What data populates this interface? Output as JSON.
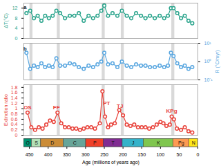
{
  "chart_data": [
    {
      "type": "line",
      "y_label": "ΔT(°C)",
      "color": "#2ca58d",
      "marker": "circle",
      "ylim": [
        0,
        14
      ],
      "yticks": [
        0,
        4,
        8,
        12
      ],
      "annotations": [
        {
          "text": "a",
          "x": 462,
          "y": 12.5
        }
      ],
      "x": [
        458,
        448,
        438,
        428,
        418,
        408,
        398,
        388,
        378,
        368,
        355,
        342,
        330,
        318,
        305,
        292,
        280,
        268,
        258,
        250,
        240,
        228,
        215,
        203,
        190,
        178,
        165,
        152,
        140,
        128,
        115,
        102,
        90,
        80,
        72,
        65,
        55,
        45,
        35,
        25,
        15
      ],
      "values": [
        10,
        11,
        8,
        9,
        7,
        9,
        8,
        9,
        11,
        10,
        8,
        9,
        9,
        10,
        7,
        9,
        8,
        9,
        11,
        13,
        9,
        10,
        9,
        11,
        9,
        8,
        10,
        9,
        8,
        9,
        8,
        9,
        8,
        9,
        12,
        12,
        10,
        8,
        9,
        7,
        6
      ]
    },
    {
      "type": "line",
      "y_label": "R (°C/myr)",
      "color": "#5aa7e0",
      "marker": "circle",
      "log": "y",
      "ylim": [
        0.1,
        10
      ],
      "yticks": [
        {
          "value": 0.1,
          "label": "10⁻¹"
        },
        {
          "value": 1,
          "label": "10⁰"
        },
        {
          "value": 10,
          "label": "10¹"
        }
      ],
      "annotations": [
        {
          "text": "b",
          "x": 462,
          "y": 5
        }
      ],
      "x": [
        458,
        448,
        438,
        428,
        418,
        408,
        398,
        388,
        378,
        368,
        355,
        342,
        330,
        318,
        305,
        292,
        280,
        268,
        258,
        250,
        240,
        228,
        215,
        203,
        190,
        178,
        165,
        152,
        140,
        128,
        115,
        102,
        90,
        80,
        72,
        65,
        55,
        45,
        35,
        25,
        15
      ],
      "values": [
        3,
        0.4,
        0.6,
        0.5,
        0.8,
        0.5,
        0.6,
        0.5,
        1.5,
        0.6,
        0.6,
        0.8,
        0.7,
        0.5,
        0.4,
        0.6,
        0.5,
        0.7,
        1,
        3,
        0.7,
        0.8,
        0.5,
        1,
        0.6,
        0.5,
        0.7,
        0.6,
        0.6,
        0.5,
        0.5,
        0.6,
        0.5,
        0.6,
        3,
        2,
        0.8,
        0.5,
        0.6,
        0.4,
        0.5
      ]
    },
    {
      "type": "line",
      "y_label": "Extinction ratio",
      "color": "#e8423a",
      "marker": "circle",
      "ylim": [
        0,
        1.9
      ],
      "yticks": [
        0,
        0.2,
        0.4,
        0.6,
        0.8,
        1,
        1.2,
        1.4,
        1.6,
        1.8
      ],
      "bands": [
        [
          449,
          441
        ],
        [
          376,
          368
        ],
        [
          256,
          248
        ],
        [
          205,
          197
        ],
        [
          70,
          62
        ]
      ],
      "annotations": [
        {
          "text": "OS",
          "x": 455,
          "y": 1.05
        },
        {
          "text": "FF",
          "x": 378,
          "y": 1.05
        },
        {
          "text": "PT",
          "x": 244,
          "y": 1.2
        },
        {
          "text": "TJ",
          "x": 208,
          "y": 1.1
        },
        {
          "text": "KPg",
          "x": 70,
          "y": 0.9
        }
      ],
      "x": [
        455,
        445,
        435,
        425,
        415,
        405,
        395,
        385,
        375,
        365,
        355,
        345,
        335,
        325,
        315,
        305,
        295,
        285,
        275,
        262,
        255,
        248,
        240,
        232,
        222,
        210,
        200,
        190,
        180,
        170,
        160,
        150,
        140,
        130,
        120,
        110,
        100,
        92,
        84,
        75,
        70,
        64,
        56,
        45,
        35,
        25,
        15
      ],
      "values": [
        0.85,
        0.3,
        0.2,
        0.3,
        0.25,
        0.4,
        0.55,
        0.5,
        0.85,
        0.45,
        0.3,
        0.3,
        0.25,
        0.25,
        0.2,
        0.25,
        0.3,
        0.3,
        0.25,
        0.45,
        1.65,
        0.7,
        0.3,
        0.4,
        0.45,
        0.95,
        0.75,
        0.4,
        0.35,
        0.4,
        0.3,
        0.3,
        0.3,
        0.25,
        0.3,
        0.4,
        0.5,
        0.45,
        0.35,
        0.4,
        0.7,
        0.6,
        0.25,
        0.2,
        0.3,
        0.15,
        0.1
      ]
    },
    {
      "type": "timescale",
      "x_label": "Age (millions of years ago)",
      "xlim": [
        465,
        0
      ],
      "xticks": [
        450,
        400,
        350,
        300,
        250,
        200,
        150,
        100,
        50,
        0
      ],
      "periods": [
        {
          "label": "O",
          "start": 485.4,
          "end": 443.8,
          "color": "#009270"
        },
        {
          "label": "S",
          "start": 443.8,
          "end": 419.2,
          "color": "#B3E1B6"
        },
        {
          "label": "D",
          "start": 419.2,
          "end": 358.9,
          "color": "#CB8C37"
        },
        {
          "label": "C",
          "start": 358.9,
          "end": 298.9,
          "color": "#67A599"
        },
        {
          "label": "P",
          "start": 298.9,
          "end": 251.9,
          "color": "#F04028"
        },
        {
          "label": "T",
          "start": 251.9,
          "end": 201.3,
          "color": "#812B92"
        },
        {
          "label": "J",
          "start": 201.3,
          "end": 145,
          "color": "#34B2C9"
        },
        {
          "label": "K",
          "start": 145,
          "end": 66,
          "color": "#7FC64E"
        },
        {
          "label": "Pg",
          "start": 66,
          "end": 23,
          "color": "#FD9A52"
        },
        {
          "label": "N",
          "start": 23,
          "end": 0,
          "color": "#FFE619"
        }
      ]
    }
  ]
}
